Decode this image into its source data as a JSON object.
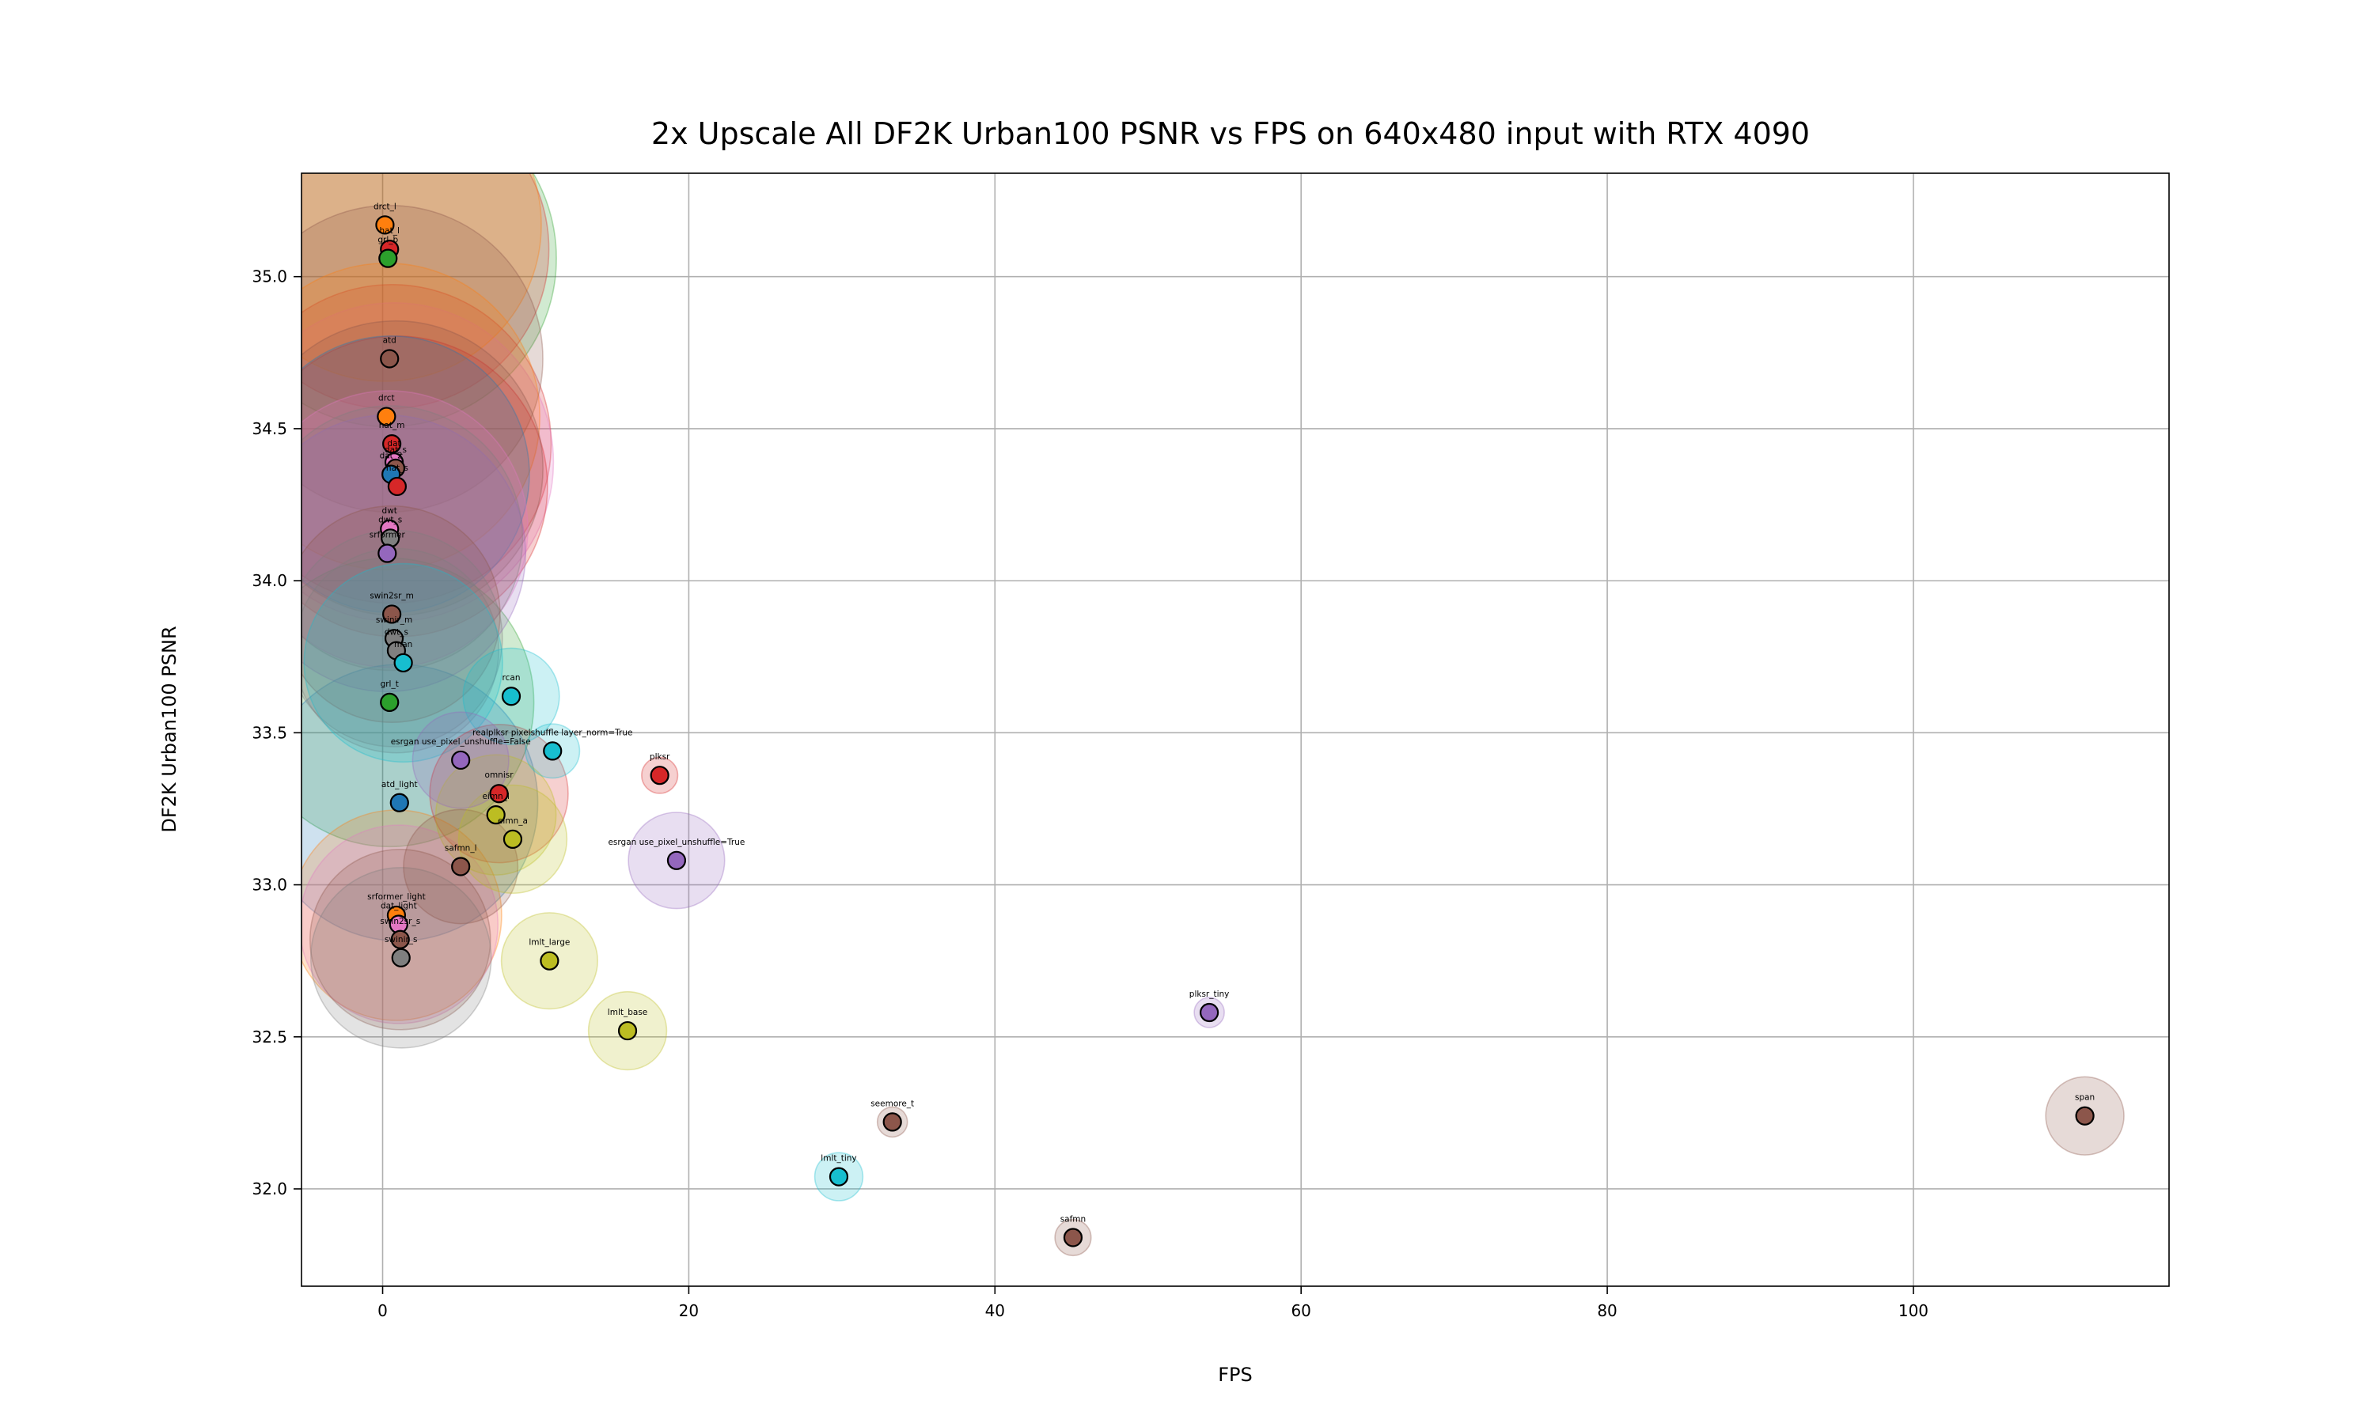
{
  "chart_data": {
    "type": "scatter",
    "title": "2x Upscale All DF2K Urban100 PSNR vs FPS on 640x480 input with RTX 4090",
    "xlabel": "FPS",
    "ylabel": "DF2K Urban100 PSNR",
    "xlim": [
      -5.3,
      116.7
    ],
    "ylim": [
      31.68,
      35.34
    ],
    "xticks": [
      0,
      20,
      40,
      60,
      80,
      100
    ],
    "yticks": [
      32.0,
      32.5,
      33.0,
      33.5,
      34.0,
      34.5,
      35.0
    ],
    "grid": true,
    "legend": "none",
    "size_encoding": "translucent bubble radius around each point",
    "colors": {
      "blue": "#1f77b4",
      "orange": "#ff7f0e",
      "green": "#2ca02c",
      "red": "#d62728",
      "purple": "#9467bd",
      "brown": "#8c564b",
      "pink": "#e377c2",
      "gray": "#7f7f7f",
      "olive": "#bcbd22",
      "cyan": "#17becf"
    },
    "points": [
      {
        "label": "drct_l",
        "x": 0.15,
        "y": 35.17,
        "color": "#ff7f0e",
        "size": 5.2
      },
      {
        "label": "hat_l",
        "x": 0.45,
        "y": 35.09,
        "color": "#d62728",
        "size": 5.3
      },
      {
        "label": "grl_b",
        "x": 0.35,
        "y": 35.06,
        "color": "#2ca02c",
        "size": 5.6
      },
      {
        "label": "atd",
        "x": 0.45,
        "y": 34.73,
        "color": "#8c564b",
        "size": 5.1
      },
      {
        "label": "drct",
        "x": 0.25,
        "y": 34.54,
        "color": "#ff7f0e",
        "size": 5.1
      },
      {
        "label": "hat_m",
        "x": 0.6,
        "y": 34.45,
        "color": "#d62728",
        "size": 5.3
      },
      {
        "label": "dat",
        "x": 0.75,
        "y": 34.39,
        "color": "#e377c2",
        "size": 5.3
      },
      {
        "label": "dat_s",
        "x": 0.85,
        "y": 34.37,
        "color": "#8c564b",
        "size": 4.9
      },
      {
        "label": "dat_2",
        "x": 0.55,
        "y": 34.35,
        "color": "#1f77b4",
        "size": 4.6
      },
      {
        "label": "hat_s",
        "x": 0.95,
        "y": 34.31,
        "color": "#d62728",
        "size": 5.0
      },
      {
        "label": "dwt",
        "x": 0.45,
        "y": 34.17,
        "color": "#e377c2",
        "size": 4.6
      },
      {
        "label": "dwt_s",
        "x": 0.5,
        "y": 34.14,
        "color": "#7f7f7f",
        "size": 4.4
      },
      {
        "label": "srformer",
        "x": 0.3,
        "y": 34.09,
        "color": "#9467bd",
        "size": 4.6
      },
      {
        "label": "swin2sr_m",
        "x": 0.6,
        "y": 33.89,
        "color": "#8c564b",
        "size": 3.6
      },
      {
        "label": "swinir_m",
        "x": 0.75,
        "y": 33.81,
        "color": "#7f7f7f",
        "size": 3.6
      },
      {
        "label": "dwt_s",
        "x": 0.9,
        "y": 33.77,
        "color": "#7f7f7f",
        "size": 3.4
      },
      {
        "label": "man",
        "x": 1.35,
        "y": 33.73,
        "color": "#17becf",
        "size": 3.3
      },
      {
        "label": "grl_t",
        "x": 0.45,
        "y": 33.6,
        "color": "#2ca02c",
        "size": 4.8
      },
      {
        "label": "rcan",
        "x": 8.4,
        "y": 33.62,
        "color": "#17becf",
        "size": 1.6
      },
      {
        "label": "realplksr pixelshuffle layer_norm=True",
        "x": 11.1,
        "y": 33.44,
        "color": "#17becf",
        "size": 0.9
      },
      {
        "label": "esrgan use_pixel_unshuffle=False",
        "x": 5.1,
        "y": 33.41,
        "color": "#9467bd",
        "size": 1.6
      },
      {
        "label": "plksr",
        "x": 18.1,
        "y": 33.36,
        "color": "#d62728",
        "size": 0.6
      },
      {
        "label": "atd_light",
        "x": 1.1,
        "y": 33.27,
        "color": "#1f77b4",
        "size": 4.6
      },
      {
        "label": "omnisr",
        "x": 7.6,
        "y": 33.3,
        "color": "#d62728",
        "size": 2.3
      },
      {
        "label": "eimn_l",
        "x": 7.4,
        "y": 33.23,
        "color": "#bcbd22",
        "size": 2.0
      },
      {
        "label": "eimn_a",
        "x": 8.5,
        "y": 33.15,
        "color": "#bcbd22",
        "size": 1.8
      },
      {
        "label": "esrgan use_pixel_unshuffle=True",
        "x": 19.2,
        "y": 33.08,
        "color": "#9467bd",
        "size": 1.6
      },
      {
        "label": "safmn_l",
        "x": 5.1,
        "y": 33.06,
        "color": "#8c564b",
        "size": 1.9
      },
      {
        "label": "srformer_light",
        "x": 0.9,
        "y": 32.9,
        "color": "#ff7f0e",
        "size": 3.5
      },
      {
        "label": "dat_light",
        "x": 1.05,
        "y": 32.87,
        "color": "#e377c2",
        "size": 3.3
      },
      {
        "label": "swin2sr_s",
        "x": 1.15,
        "y": 32.82,
        "color": "#8c564b",
        "size": 3.0
      },
      {
        "label": "swinir_s",
        "x": 1.2,
        "y": 32.76,
        "color": "#7f7f7f",
        "size": 3.0
      },
      {
        "label": "lmlt_large",
        "x": 10.9,
        "y": 32.75,
        "color": "#bcbd22",
        "size": 1.6
      },
      {
        "label": "lmlt_base",
        "x": 16.0,
        "y": 32.52,
        "color": "#bcbd22",
        "size": 1.3
      },
      {
        "label": "plksr_tiny",
        "x": 54.0,
        "y": 32.58,
        "color": "#9467bd",
        "size": 0.5
      },
      {
        "label": "seemore_t",
        "x": 33.3,
        "y": 32.22,
        "color": "#8c564b",
        "size": 0.5
      },
      {
        "label": "span",
        "x": 111.2,
        "y": 32.24,
        "color": "#8c564b",
        "size": 1.3
      },
      {
        "label": "lmlt_tiny",
        "x": 29.8,
        "y": 32.04,
        "color": "#17becf",
        "size": 0.8
      },
      {
        "label": "safmn",
        "x": 45.1,
        "y": 31.84,
        "color": "#8c564b",
        "size": 0.6
      }
    ]
  }
}
